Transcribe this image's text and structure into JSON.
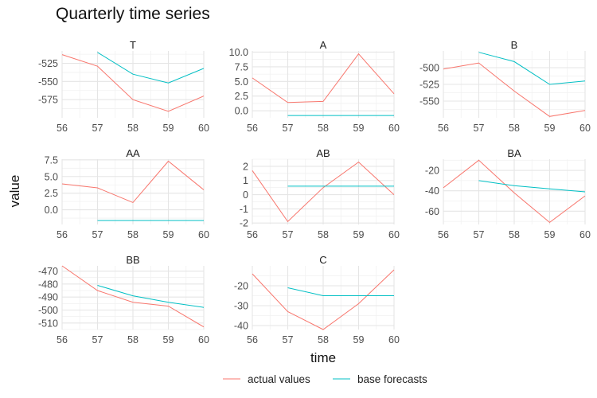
{
  "chart_data": {
    "type": "line",
    "title": "Quarterly time series",
    "xlabel": "time",
    "ylabel": "value",
    "legend": {
      "placement": "bottom",
      "entries": [
        {
          "name": "actual values",
          "color": "#F8766D"
        },
        {
          "name": "base forecasts",
          "color": "#00BFC4"
        }
      ]
    },
    "x_ticks": [
      56,
      57,
      58,
      59,
      60
    ],
    "xlim": [
      56,
      60
    ],
    "grid": true,
    "facets": [
      {
        "label": "T",
        "ylim": [
          -600,
          -508
        ],
        "y_ticks": [
          -525,
          -550,
          -575
        ],
        "series": [
          {
            "name": "actual values",
            "x": [
              56,
              57,
              58,
              59,
              60
            ],
            "y": [
              -513,
              -529,
              -575,
              -591,
              -570
            ]
          },
          {
            "name": "base forecasts",
            "x": [
              57,
              58,
              59,
              60
            ],
            "y": [
              -510,
              -540,
              -552,
              -532
            ]
          }
        ]
      },
      {
        "label": "A",
        "ylim": [
          -1.2,
          10.2
        ],
        "y_ticks": [
          10.0,
          7.5,
          5.0,
          2.5,
          0.0
        ],
        "y_tick_labels": [
          "10.0",
          "7.5",
          "5.0",
          "2.5",
          "0.0"
        ],
        "series": [
          {
            "name": "actual values",
            "x": [
              56,
              57,
              58,
              59,
              60
            ],
            "y": [
              5.6,
              1.4,
              1.6,
              9.7,
              2.9
            ]
          },
          {
            "name": "base forecasts",
            "x": [
              57,
              58,
              59,
              60
            ],
            "y": [
              -0.8,
              -0.8,
              -0.8,
              -0.8
            ]
          }
        ]
      },
      {
        "label": "B",
        "ylim": [
          -575,
          -475
        ],
        "y_ticks": [
          -500,
          -525,
          -550
        ],
        "series": [
          {
            "name": "actual values",
            "x": [
              56,
              57,
              58,
              59,
              60
            ],
            "y": [
              -502,
              -493,
              -535,
              -573,
              -564
            ]
          },
          {
            "name": "base forecasts",
            "x": [
              57,
              58,
              59,
              60
            ],
            "y": [
              -477,
              -491,
              -525,
              -520
            ]
          }
        ]
      },
      {
        "label": "AA",
        "ylim": [
          -2.2,
          7.6
        ],
        "y_ticks": [
          7.5,
          5.0,
          2.5,
          0.0
        ],
        "y_tick_labels": [
          "7.5",
          "5.0",
          "2.5",
          "0.0"
        ],
        "series": [
          {
            "name": "actual values",
            "x": [
              56,
              57,
              58,
              59,
              60
            ],
            "y": [
              3.9,
              3.3,
              1.1,
              7.3,
              3.0
            ]
          },
          {
            "name": "base forecasts",
            "x": [
              57,
              58,
              59,
              60
            ],
            "y": [
              -1.6,
              -1.6,
              -1.6,
              -1.6
            ]
          }
        ]
      },
      {
        "label": "AB",
        "ylim": [
          -2.1,
          2.5
        ],
        "y_ticks": [
          2,
          1,
          0,
          -1,
          -2
        ],
        "series": [
          {
            "name": "actual values",
            "x": [
              56,
              57,
              58,
              59,
              60
            ],
            "y": [
              1.7,
              -1.9,
              0.5,
              2.3,
              0.0
            ]
          },
          {
            "name": "base forecasts",
            "x": [
              57,
              58,
              59,
              60
            ],
            "y": [
              0.6,
              0.6,
              0.6,
              0.6
            ]
          }
        ]
      },
      {
        "label": "BA",
        "ylim": [
          -73,
          -9
        ],
        "y_ticks": [
          -20,
          -40,
          -60
        ],
        "series": [
          {
            "name": "actual values",
            "x": [
              56,
              57,
              58,
              59,
              60
            ],
            "y": [
              -37,
              -10,
              -42,
              -71,
              -45
            ]
          },
          {
            "name": "base forecasts",
            "x": [
              57,
              58,
              59,
              60
            ],
            "y": [
              -30,
              -35,
              -38,
              -41
            ]
          }
        ]
      },
      {
        "label": "BB",
        "ylim": [
          -515,
          -466
        ],
        "y_ticks": [
          -470,
          -480,
          -490,
          -500,
          -510
        ],
        "series": [
          {
            "name": "actual values",
            "x": [
              56,
              57,
              58,
              59,
              60
            ],
            "y": [
              -466,
              -485,
              -494,
              -497,
              -513
            ]
          },
          {
            "name": "base forecasts",
            "x": [
              57,
              58,
              59,
              60
            ],
            "y": [
              -481,
              -489,
              -494,
              -498
            ]
          }
        ]
      },
      {
        "label": "C",
        "ylim": [
          -42,
          -10
        ],
        "y_ticks": [
          -20,
          -30,
          -40
        ],
        "series": [
          {
            "name": "actual values",
            "x": [
              56,
              57,
              58,
              59,
              60
            ],
            "y": [
              -14,
              -33,
              -42,
              -29,
              -12
            ]
          },
          {
            "name": "base forecasts",
            "x": [
              57,
              58,
              59,
              60
            ],
            "y": [
              -21,
              -25,
              -25,
              -25
            ]
          }
        ]
      }
    ]
  }
}
